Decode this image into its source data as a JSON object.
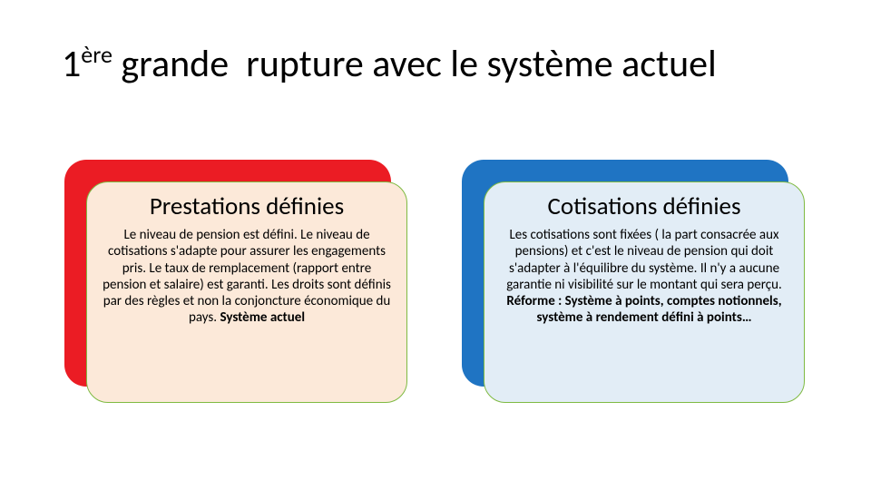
{
  "title_html": "1<sup>ère</sup> grande&nbsp; rupture avec le système actuel",
  "left": {
    "back_color": "#eb1c24",
    "front_bg": "#fce9d9",
    "front_border": "#7fba42",
    "title": "Prestations définies",
    "body_html": "Le niveau de pension est défini. Le niveau de cotisations s'adapte pour assurer les engagements pris. Le taux de remplacement (rapport entre pension et salaire) est garanti. Les droits sont définis par des règles et non la conjoncture économique du pays. <span class=\"bold\">Système actuel</span>"
  },
  "right": {
    "back_color": "#1f74c3",
    "front_bg": "#e2edf6",
    "front_border": "#7fba42",
    "title": "Cotisations définies",
    "body_html": "Les cotisations sont fixées ( la part consacrée aux pensions) et c'est le niveau de pension qui doit s'adapter à l'équilibre du système. Il n'y a aucune garantie ni visibilité sur le montant qui sera perçu. <span class=\"bold\">Réforme : Système à points, comptes notionnels, système à rendement défini à points…</span>"
  }
}
